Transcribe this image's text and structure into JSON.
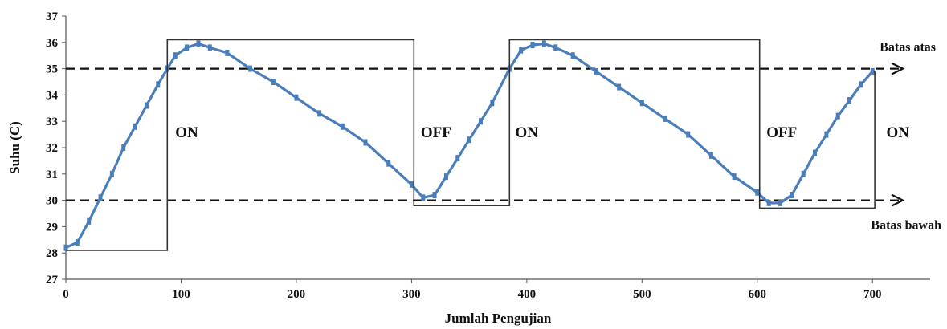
{
  "chart_data": {
    "type": "line",
    "title": "",
    "xlabel": "Jumlah Pengujian",
    "ylabel": "Suhu (C)",
    "xlim": [
      0,
      750
    ],
    "ylim": [
      27,
      37
    ],
    "x_ticks": [
      0,
      100,
      200,
      300,
      400,
      500,
      600,
      700
    ],
    "y_ticks": [
      27,
      28,
      29,
      30,
      31,
      32,
      33,
      34,
      35,
      36,
      37
    ],
    "grid": false,
    "legend": "none",
    "series": [
      {
        "style": "line-with-markers",
        "color": "#4a7ebb",
        "x": [
          0,
          10,
          20,
          30,
          40,
          50,
          60,
          70,
          80,
          88,
          95,
          105,
          115,
          125,
          140,
          160,
          180,
          200,
          220,
          240,
          260,
          280,
          300,
          310,
          320,
          330,
          340,
          350,
          360,
          370,
          385,
          395,
          405,
          415,
          425,
          440,
          460,
          480,
          500,
          520,
          540,
          560,
          580,
          600,
          610,
          620,
          630,
          640,
          650,
          660,
          670,
          680,
          690,
          700
        ],
        "y": [
          28.2,
          28.4,
          29.2,
          30.1,
          31.0,
          32.0,
          32.8,
          33.6,
          34.4,
          35.0,
          35.5,
          35.8,
          35.95,
          35.8,
          35.6,
          35.0,
          34.5,
          33.9,
          33.3,
          32.8,
          32.2,
          31.4,
          30.6,
          30.1,
          30.2,
          30.9,
          31.6,
          32.3,
          33.0,
          33.7,
          35.0,
          35.7,
          35.9,
          35.95,
          35.8,
          35.5,
          34.9,
          34.3,
          33.7,
          33.1,
          32.5,
          31.7,
          30.9,
          30.3,
          29.9,
          29.9,
          30.2,
          31.0,
          31.8,
          32.5,
          33.2,
          33.8,
          34.4,
          34.9
        ]
      },
      {
        "style": "step",
        "color": "#333333",
        "x": [
          0,
          88,
          88,
          302,
          302,
          385,
          385,
          602,
          602,
          702,
          702
        ],
        "y": [
          28.1,
          28.1,
          36.1,
          36.1,
          29.8,
          29.8,
          36.1,
          36.1,
          29.7,
          29.7,
          34.9
        ]
      }
    ],
    "reference_lines": [
      {
        "y": 35,
        "label": "Batas atas",
        "style": "dashed",
        "arrow": "right"
      },
      {
        "y": 30,
        "label": "Batas bawah",
        "style": "dashed",
        "arrow": "right"
      }
    ],
    "annotations": [
      {
        "text": "ON",
        "x": 95,
        "y": 32.4
      },
      {
        "text": "OFF",
        "x": 308,
        "y": 32.4
      },
      {
        "text": "ON",
        "x": 390,
        "y": 32.4
      },
      {
        "text": "OFF",
        "x": 608,
        "y": 32.4
      },
      {
        "text": "ON",
        "x": 712,
        "y": 32.4
      }
    ]
  }
}
